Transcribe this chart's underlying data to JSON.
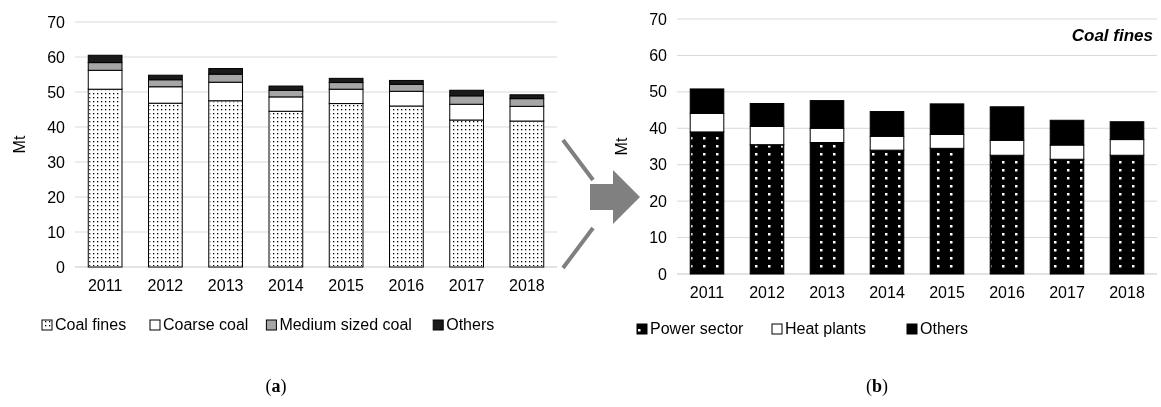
{
  "chart_data": [
    {
      "type": "bar",
      "stacked": true,
      "ylabel": "Mt",
      "categories": [
        "2011",
        "2012",
        "2013",
        "2014",
        "2015",
        "2016",
        "2017",
        "2018"
      ],
      "ylim": [
        0,
        70
      ],
      "yticks": [
        0,
        10,
        20,
        30,
        40,
        50,
        60,
        70
      ],
      "grid": "y",
      "legend": "bottom",
      "annotations": [
        "(a)"
      ],
      "series": [
        {
          "name": "Coal fines",
          "color": "#ffffff",
          "values": [
            50.8,
            46.8,
            47.5,
            44.5,
            46.7,
            46.0,
            42.0,
            41.7
          ]
        },
        {
          "name": "Coarse coal",
          "color": "#ffffff",
          "values": [
            5.4,
            4.7,
            5.3,
            4.1,
            4.1,
            4.2,
            4.5,
            4.2
          ]
        },
        {
          "name": "Medium sized coal",
          "color": "#a6a6a6",
          "values": [
            2.2,
            2.0,
            2.3,
            1.9,
            1.9,
            2.0,
            2.4,
            2.2
          ]
        },
        {
          "name": "Others",
          "color": "#1a1a1a",
          "values": [
            2.1,
            1.3,
            1.6,
            1.2,
            1.2,
            1.1,
            1.6,
            1.1
          ]
        }
      ]
    },
    {
      "type": "bar",
      "stacked": true,
      "title": "Coal fines",
      "ylabel": "Mt",
      "categories": [
        "2011",
        "2012",
        "2013",
        "2014",
        "2015",
        "2016",
        "2017",
        "2018"
      ],
      "ylim": [
        0,
        70
      ],
      "yticks": [
        0,
        10,
        20,
        30,
        40,
        50,
        60,
        70
      ],
      "grid": "y",
      "legend": "bottom",
      "annotations": [
        "(b)"
      ],
      "series": [
        {
          "name": "Power sector",
          "color": "#000000",
          "values": [
            39.0,
            35.5,
            36.1,
            34.0,
            34.5,
            32.6,
            31.5,
            32.6
          ]
        },
        {
          "name": "Heat plants",
          "color": "#ffffff",
          "values": [
            5.1,
            5.0,
            3.9,
            3.8,
            3.8,
            4.1,
            3.9,
            4.3
          ]
        },
        {
          "name": "Others",
          "color": "#000000",
          "values": [
            6.7,
            6.3,
            7.6,
            6.8,
            8.4,
            9.2,
            6.8,
            4.9
          ]
        }
      ]
    }
  ]
}
